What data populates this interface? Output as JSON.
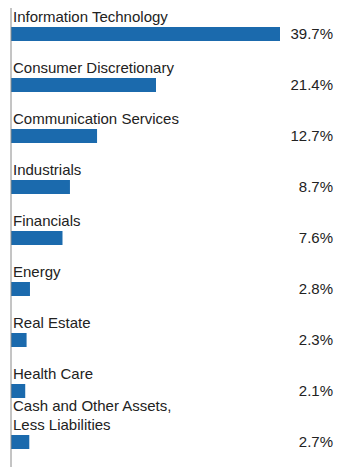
{
  "chart_data": {
    "type": "bar",
    "orientation": "horizontal",
    "categories": [
      "Information Technology",
      "Consumer Discretionary",
      "Communication Services",
      "Industrials",
      "Financials",
      "Energy",
      "Real Estate",
      "Health Care",
      "Cash and Other Assets, Less Liabilities"
    ],
    "values": [
      39.7,
      21.4,
      12.7,
      8.7,
      7.6,
      2.8,
      2.3,
      2.1,
      2.7
    ],
    "value_labels": [
      "39.7%",
      "21.4%",
      "12.7%",
      "8.7%",
      "7.6%",
      "2.8%",
      "2.3%",
      "2.1%",
      "2.7%"
    ],
    "color": "#1b6aad",
    "data_labels": true,
    "tick_labels": false
  }
}
